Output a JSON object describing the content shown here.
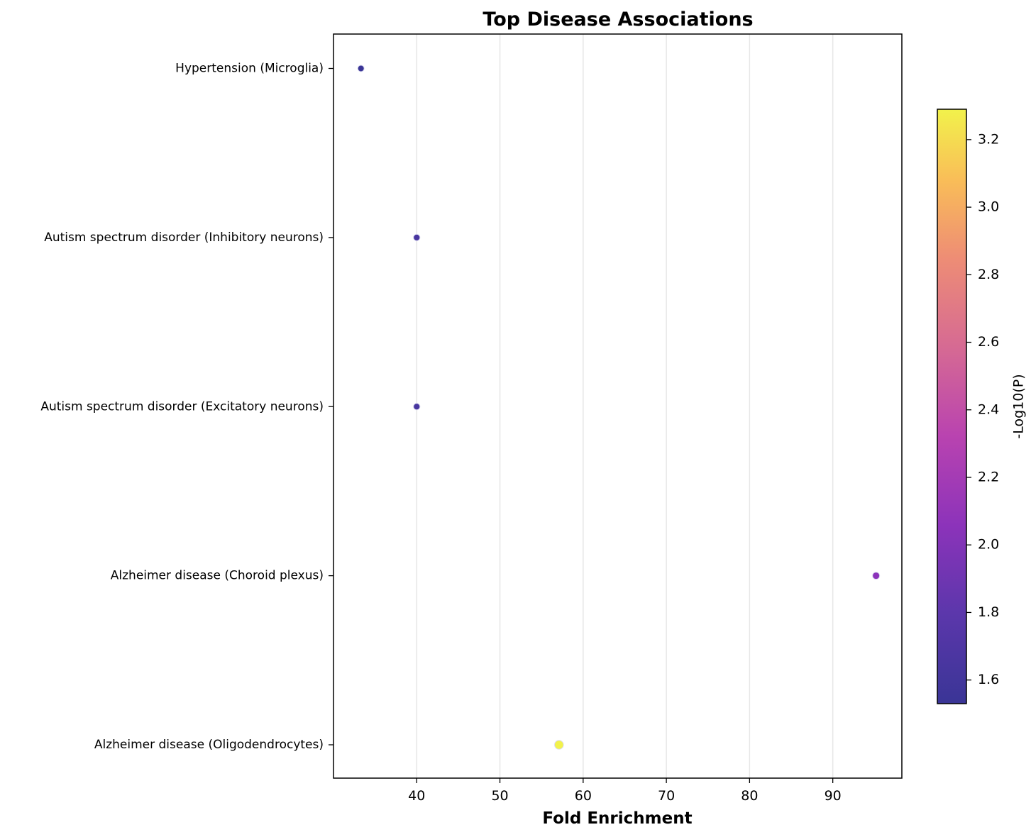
{
  "chart_data": {
    "type": "scatter",
    "title": "Top Disease Associations",
    "xlabel": "Fold Enrichment",
    "ylabel": "",
    "xlim": [
      30,
      98.3
    ],
    "xticks": [
      40,
      50,
      60,
      70,
      80,
      90
    ],
    "categories": [
      "Hypertension (Microglia)",
      "Autism spectrum disorder (Inhibitory neurons)",
      "Autism spectrum disorder (Excitatory neurons)",
      "Alzheimer disease (Choroid plexus)",
      "Alzheimer disease (Oligodendrocytes)"
    ],
    "points": [
      {
        "category": "Hypertension (Microglia)",
        "x": 33.3,
        "color_value": 1.53
      },
      {
        "category": "Autism spectrum disorder (Inhibitory neurons)",
        "x": 40.0,
        "color_value": 1.64
      },
      {
        "category": "Autism spectrum disorder (Excitatory neurons)",
        "x": 40.0,
        "color_value": 1.64
      },
      {
        "category": "Alzheimer disease (Choroid plexus)",
        "x": 95.2,
        "color_value": 2.06
      },
      {
        "category": "Alzheimer disease (Oligodendrocytes)",
        "x": 57.1,
        "color_value": 3.29
      }
    ],
    "colorbar": {
      "label": "-Log10(P)",
      "range": [
        1.53,
        3.29
      ],
      "ticks": [
        "1.6",
        "1.8",
        "2.0",
        "2.2",
        "2.4",
        "2.6",
        "2.8",
        "3.0",
        "3.2"
      ],
      "colormap": "plasma"
    },
    "grid": "x-only",
    "colors": {
      "low": "#3a3596",
      "mid": "#a433b6",
      "high": "#f2f24b",
      "grid": "#e6e6e6"
    }
  }
}
